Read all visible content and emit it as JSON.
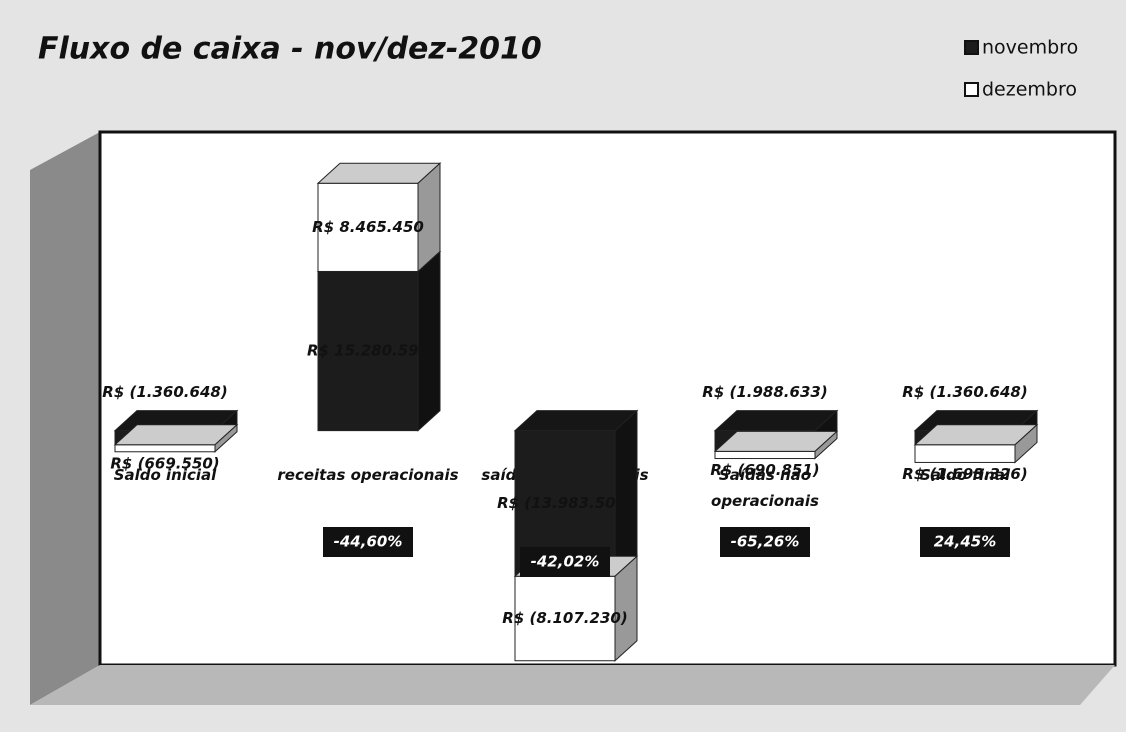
{
  "chart_data": {
    "type": "bar3d",
    "title": "Fluxo de caixa - nov/dez-2010",
    "categories": [
      "Saldo inicial",
      "receitas operacionais",
      "saídas operacionais",
      "Saídas não operacionais",
      "Saldo final"
    ],
    "series": [
      {
        "name": "novembro",
        "color": "#1c1c1c",
        "values": [
          -1360648,
          15280596,
          -13983508,
          -1988633,
          -1360648
        ],
        "value_labels": [
          "R$ (1.360.648)",
          "R$ 15.280.596",
          "R$ (13.983.508)",
          "R$ (1.988.633)",
          "R$ (1.360.648)"
        ]
      },
      {
        "name": "dezembro",
        "color": "#ffffff",
        "values": [
          -669550,
          8465450,
          -8107230,
          -690851,
          -1693326
        ],
        "value_labels": [
          "R$ (669.550)",
          "R$ 8.465.450",
          "R$ (8.107.230)",
          "R$ (690.851)",
          "R$ (1.693.326)"
        ]
      }
    ],
    "changes": [
      null,
      -44.6,
      -42.02,
      -65.26,
      24.45
    ],
    "change_labels": [
      null,
      "-44,60%",
      "-42,02%",
      "-65,26%",
      "24,45%"
    ],
    "ylim": [
      -22500000,
      25500000
    ],
    "legend": "top-right"
  }
}
